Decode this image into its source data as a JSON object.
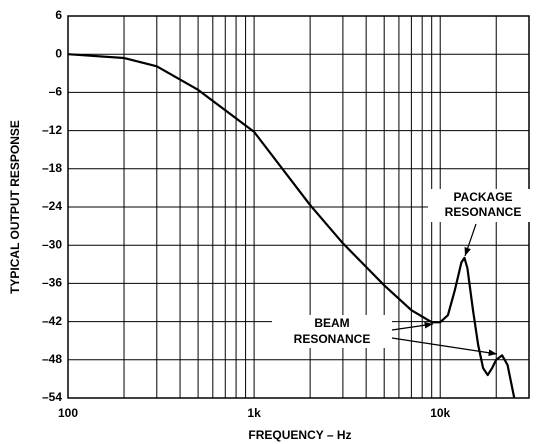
{
  "chart_data": {
    "type": "line",
    "x_label": "FREQUENCY – Hz",
    "y_label": "TYPICAL OUTPUT RESPONSE",
    "x": [
      100,
      200,
      300,
      500,
      700,
      1000,
      2000,
      3000,
      5000,
      7000,
      9000,
      10000,
      11000,
      12000,
      13000,
      13500,
      14000,
      15000,
      16000,
      17000,
      18000,
      19000,
      20000,
      21500,
      23000,
      25000
    ],
    "values": [
      0,
      -0.6,
      -1.9,
      -5.6,
      -8.8,
      -12.2,
      -23.7,
      -29.7,
      -36.3,
      -40.2,
      -42.1,
      -42.1,
      -41,
      -37,
      -32.7,
      -32,
      -33.6,
      -40.2,
      -45.7,
      -49.3,
      -50.4,
      -49.3,
      -48,
      -47.3,
      -48.8,
      -54
    ],
    "color": "#000000",
    "log_x": true,
    "grid": true,
    "xlim": [
      100,
      30000
    ],
    "xticks": [
      {
        "value": 100,
        "label": "100"
      },
      {
        "value": 1000,
        "label": "1k"
      },
      {
        "value": 10000,
        "label": "10k"
      }
    ],
    "x_minor_gridlines": [
      200,
      300,
      400,
      500,
      600,
      700,
      800,
      900,
      2000,
      3000,
      4000,
      5000,
      6000,
      7000,
      8000,
      9000,
      20000
    ],
    "ylim": [
      -54,
      6
    ],
    "yticks": [
      {
        "value": -54,
        "label": "–54"
      },
      {
        "value": -48,
        "label": "–48"
      },
      {
        "value": -42,
        "label": "–42"
      },
      {
        "value": -36,
        "label": "–36"
      },
      {
        "value": -30,
        "label": "–30"
      },
      {
        "value": -24,
        "label": "–24"
      },
      {
        "value": -18,
        "label": "–18"
      },
      {
        "value": -12,
        "label": "–12"
      },
      {
        "value": -6,
        "label": "–6"
      },
      0,
      6
    ],
    "annotations": [
      [
        "PACKAGE",
        "RESONANCE"
      ],
      [
        "BEAM",
        "RESONANCE"
      ]
    ]
  }
}
